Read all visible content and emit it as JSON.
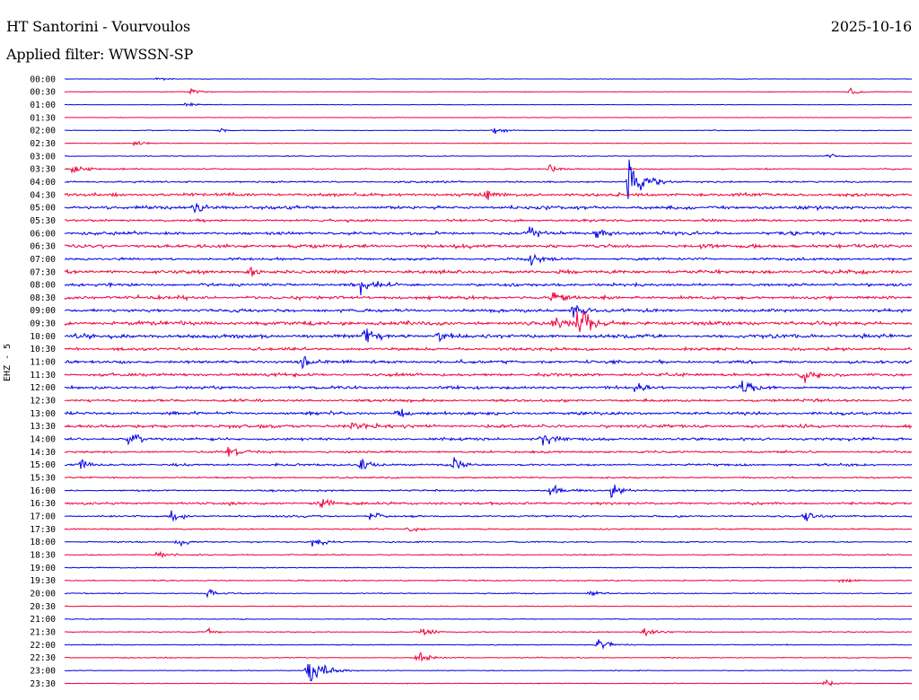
{
  "header": {
    "title": "HT Santorini - Vourvoulos",
    "date": "2025-10-16",
    "filter": "Applied filter: WWSSN-SP"
  },
  "channel_label": "EHZ - 5",
  "colors": {
    "trace_a": "#0000e6",
    "trace_b": "#f0003c",
    "text": "#000000",
    "background": "#ffffff"
  },
  "chart_data": {
    "type": "line",
    "title": "HT Santorini - Vourvoulos",
    "subtitle": "Applied filter: WWSSN-SP",
    "ylabel": "EHZ - 5",
    "rows": [
      "00:00",
      "00:30",
      "01:00",
      "01:30",
      "02:00",
      "02:30",
      "03:00",
      "03:30",
      "04:00",
      "04:30",
      "05:00",
      "05:30",
      "06:00",
      "06:30",
      "07:00",
      "07:30",
      "08:00",
      "08:30",
      "09:00",
      "09:30",
      "10:00",
      "10:30",
      "11:00",
      "11:30",
      "12:00",
      "12:30",
      "13:00",
      "13:30",
      "14:00",
      "14:30",
      "15:00",
      "15:30",
      "16:00",
      "16:30",
      "17:00",
      "17:30",
      "18:00",
      "18:30",
      "19:00",
      "19:30",
      "20:00",
      "20:30",
      "21:00",
      "21:30",
      "22:00",
      "22:30",
      "23:00",
      "23:30"
    ],
    "noise": [
      0.2,
      0.3,
      0.3,
      0.25,
      0.4,
      0.35,
      0.4,
      0.7,
      0.9,
      1.6,
      1.7,
      1.3,
      1.6,
      1.8,
      1.3,
      1.8,
      1.5,
      1.7,
      1.6,
      2.0,
      1.9,
      1.5,
      1.6,
      1.6,
      1.4,
      1.3,
      1.5,
      1.6,
      1.4,
      1.1,
      1.1,
      0.8,
      0.9,
      1.3,
      1.0,
      0.7,
      0.7,
      0.6,
      0.5,
      0.6,
      0.5,
      0.4,
      0.4,
      0.5,
      0.5,
      0.5,
      0.4,
      0.4
    ],
    "events": [
      {
        "row": "00:00",
        "minute": 3.3,
        "amp": 2
      },
      {
        "row": "00:30",
        "minute": 4.5,
        "amp": 4
      },
      {
        "row": "00:30",
        "minute": 27.8,
        "amp": 5
      },
      {
        "row": "01:00",
        "minute": 4.3,
        "amp": 3
      },
      {
        "row": "02:00",
        "minute": 15.2,
        "amp": 4
      },
      {
        "row": "02:00",
        "minute": 5.5,
        "amp": 3
      },
      {
        "row": "02:30",
        "minute": 2.5,
        "amp": 5
      },
      {
        "row": "03:00",
        "minute": 27.0,
        "amp": 3
      },
      {
        "row": "03:30",
        "minute": 0.3,
        "amp": 5
      },
      {
        "row": "03:30",
        "minute": 17.2,
        "amp": 4
      },
      {
        "row": "04:00",
        "minute": 20.0,
        "amp": 24
      },
      {
        "row": "04:30",
        "minute": 14.8,
        "amp": 5
      },
      {
        "row": "05:00",
        "minute": 4.6,
        "amp": 7
      },
      {
        "row": "06:00",
        "minute": 18.8,
        "amp": 7
      },
      {
        "row": "06:00",
        "minute": 16.4,
        "amp": 6
      },
      {
        "row": "07:00",
        "minute": 16.5,
        "amp": 6
      },
      {
        "row": "07:30",
        "minute": 6.5,
        "amp": 7
      },
      {
        "row": "08:00",
        "minute": 10.5,
        "amp": 8
      },
      {
        "row": "08:30",
        "minute": 17.3,
        "amp": 6
      },
      {
        "row": "09:00",
        "minute": 18.0,
        "amp": 7
      },
      {
        "row": "09:30",
        "minute": 18.2,
        "amp": 16
      },
      {
        "row": "09:30",
        "minute": 17.3,
        "amp": 7
      },
      {
        "row": "10:00",
        "minute": 10.6,
        "amp": 7
      },
      {
        "row": "10:00",
        "minute": 13.2,
        "amp": 7
      },
      {
        "row": "11:00",
        "minute": 8.4,
        "amp": 6
      },
      {
        "row": "11:30",
        "minute": 26.2,
        "amp": 8
      },
      {
        "row": "12:00",
        "minute": 20.2,
        "amp": 8
      },
      {
        "row": "12:00",
        "minute": 24.0,
        "amp": 7
      },
      {
        "row": "13:00",
        "minute": 11.8,
        "amp": 7
      },
      {
        "row": "13:30",
        "minute": 10.2,
        "amp": 6
      },
      {
        "row": "14:00",
        "minute": 16.9,
        "amp": 8
      },
      {
        "row": "14:00",
        "minute": 2.3,
        "amp": 7
      },
      {
        "row": "14:30",
        "minute": 5.8,
        "amp": 6
      },
      {
        "row": "15:00",
        "minute": 0.6,
        "amp": 6
      },
      {
        "row": "15:00",
        "minute": 10.5,
        "amp": 7
      },
      {
        "row": "15:00",
        "minute": 13.8,
        "amp": 6
      },
      {
        "row": "16:00",
        "minute": 17.2,
        "amp": 7
      },
      {
        "row": "16:00",
        "minute": 19.4,
        "amp": 8
      },
      {
        "row": "16:30",
        "minute": 9.1,
        "amp": 6
      },
      {
        "row": "17:00",
        "minute": 3.8,
        "amp": 8
      },
      {
        "row": "17:00",
        "minute": 26.2,
        "amp": 8
      },
      {
        "row": "17:00",
        "minute": 10.8,
        "amp": 6
      },
      {
        "row": "17:30",
        "minute": 12.2,
        "amp": 5
      },
      {
        "row": "18:00",
        "minute": 4.0,
        "amp": 6
      },
      {
        "row": "18:00",
        "minute": 8.8,
        "amp": 9
      },
      {
        "row": "18:30",
        "minute": 3.3,
        "amp": 4
      },
      {
        "row": "19:30",
        "minute": 27.5,
        "amp": 4
      },
      {
        "row": "20:00",
        "minute": 5.1,
        "amp": 6
      },
      {
        "row": "20:00",
        "minute": 18.6,
        "amp": 4
      },
      {
        "row": "21:30",
        "minute": 5.1,
        "amp": 4
      },
      {
        "row": "21:30",
        "minute": 12.7,
        "amp": 6
      },
      {
        "row": "21:30",
        "minute": 20.5,
        "amp": 9
      },
      {
        "row": "22:00",
        "minute": 18.9,
        "amp": 10
      },
      {
        "row": "22:30",
        "minute": 12.5,
        "amp": 8
      },
      {
        "row": "23:00",
        "minute": 8.6,
        "amp": 20
      },
      {
        "row": "23:30",
        "minute": 26.9,
        "amp": 3
      }
    ],
    "xlim": [
      0,
      30
    ],
    "grid": false,
    "legend": "none"
  }
}
